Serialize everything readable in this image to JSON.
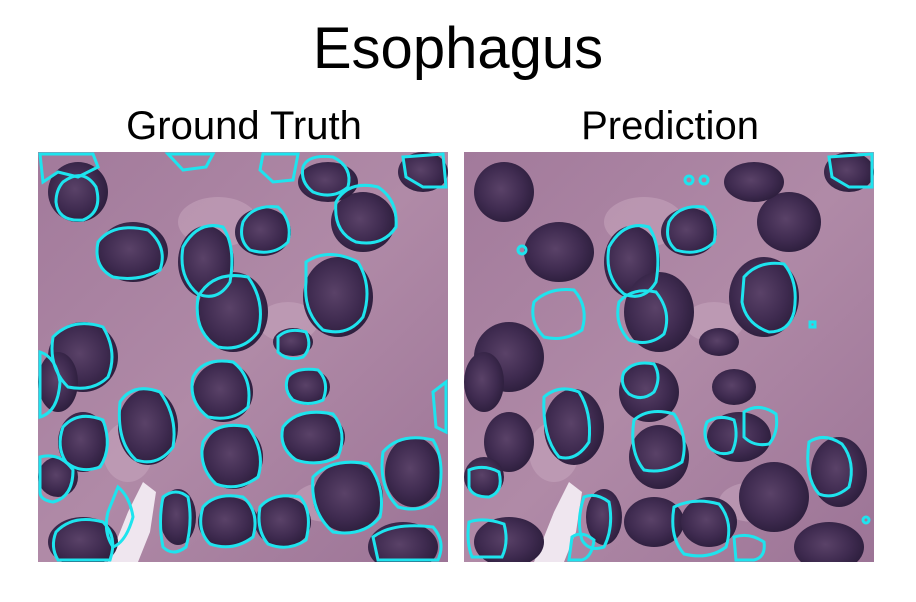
{
  "figure": {
    "title": "Esophagus",
    "panels": [
      {
        "label": "Ground Truth"
      },
      {
        "label": "Prediction"
      }
    ]
  },
  "colors": {
    "tissue_base": "#a77d9e",
    "tissue_light": "#c9a9c1",
    "nucleus": "#3e2a4f",
    "nucleus_dark": "#2a1c3a",
    "contour": "#1ee4ee"
  }
}
